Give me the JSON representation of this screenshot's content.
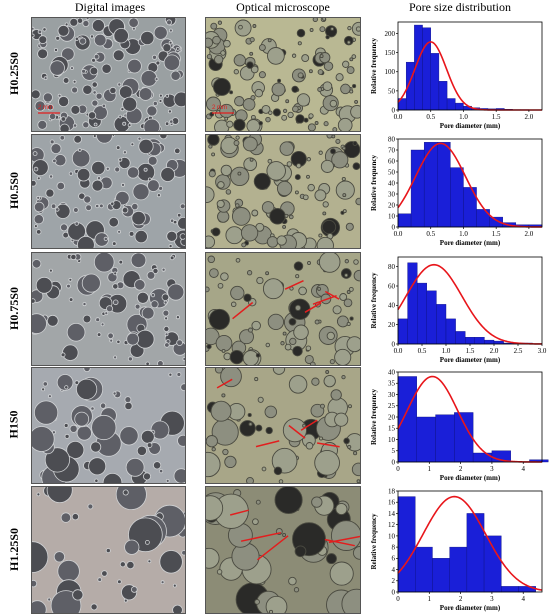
{
  "headers": {
    "digital": "Digital images",
    "optical": "Optical microscope",
    "pore": "Pore size distribution"
  },
  "scale_labels": {
    "digital": "2 mm",
    "optical": "2 mm"
  },
  "colors": {
    "bar": "#1a1fd8",
    "curve": "#e8161b",
    "axis": "#000000"
  },
  "rows": [
    {
      "label": "H0.25S0"
    },
    {
      "label": "H0.5S0"
    },
    {
      "label": "H0.75S0"
    },
    {
      "label": "H1S0"
    },
    {
      "label": "H1.25S0"
    }
  ],
  "chart_data": [
    {
      "type": "bar",
      "xlabel": "Pore diameter (mm)",
      "ylabel": "Relative frequency",
      "xlim": [
        0,
        2.2
      ],
      "ylim": [
        0,
        230
      ],
      "xticks": [
        0.0,
        0.5,
        1.0,
        1.5,
        2.0
      ],
      "xtick_labels": [
        "0.0",
        "0.5",
        "1.0",
        "1.5",
        "2.0"
      ],
      "yticks": [
        0,
        50,
        100,
        150,
        200
      ],
      "bin_width": 0.125,
      "bin_starts": [
        0.0,
        0.125,
        0.25,
        0.375,
        0.5,
        0.625,
        0.75,
        0.875,
        1.0,
        1.125,
        1.25,
        1.375,
        1.5,
        1.625,
        1.75,
        1.875,
        2.0
      ],
      "values": [
        30,
        125,
        222,
        215,
        148,
        75,
        30,
        18,
        10,
        6,
        4,
        3,
        4,
        2,
        1,
        1,
        0
      ],
      "curve": {
        "peak_x": 0.5,
        "peak_y": 178,
        "sigma": 0.24
      }
    },
    {
      "type": "bar",
      "xlabel": "Pore diameter (mm)",
      "ylabel": "Relative frequency",
      "xlim": [
        0,
        2.2
      ],
      "ylim": [
        0,
        80
      ],
      "xticks": [
        0.0,
        0.5,
        1.0,
        1.5,
        2.0
      ],
      "xtick_labels": [
        "0.0",
        "0.5",
        "1.0",
        "1.5",
        "2.0"
      ],
      "yticks": [
        0,
        10,
        20,
        30,
        40,
        50,
        60,
        70,
        80
      ],
      "bin_width": 0.2,
      "bin_starts": [
        0.0,
        0.2,
        0.4,
        0.6,
        0.8,
        1.0,
        1.2,
        1.4,
        1.6,
        1.8,
        2.0
      ],
      "values": [
        12,
        70,
        77,
        77,
        54,
        36,
        16,
        9,
        4,
        2,
        2
      ],
      "curve": {
        "peak_x": 0.65,
        "peak_y": 76,
        "sigma": 0.38
      }
    },
    {
      "type": "bar",
      "xlabel": "Pore diameter (mm)",
      "ylabel": "Relative frequency",
      "xlim": [
        0,
        3.0
      ],
      "ylim": [
        0,
        90
      ],
      "xticks": [
        0.0,
        0.5,
        1.0,
        1.5,
        2.0,
        2.5,
        3.0
      ],
      "xtick_labels": [
        "0.0",
        "0.5",
        "1.0",
        "1.5",
        "2.0",
        "2.5",
        "3.0"
      ],
      "yticks": [
        0,
        20,
        40,
        60,
        80
      ],
      "bin_width": 0.2,
      "bin_starts": [
        0.0,
        0.2,
        0.4,
        0.6,
        0.8,
        1.0,
        1.2,
        1.4,
        1.6,
        1.8,
        2.0,
        2.2,
        2.4,
        2.6,
        2.8
      ],
      "values": [
        26,
        84,
        63,
        55,
        41,
        26,
        13,
        7,
        7,
        4,
        3,
        1,
        1,
        1,
        0
      ],
      "curve": {
        "peak_x": 0.75,
        "peak_y": 82,
        "sigma": 0.58
      }
    },
    {
      "type": "bar",
      "xlabel": "Pore diameter (mm)",
      "ylabel": "Relative frequency",
      "xlim": [
        0,
        4.6
      ],
      "ylim": [
        0,
        40
      ],
      "xticks": [
        0,
        1,
        2,
        3,
        4
      ],
      "xtick_labels": [
        "0",
        "1",
        "2",
        "3",
        "4"
      ],
      "yticks": [
        0,
        5,
        10,
        15,
        20,
        25,
        30,
        35,
        40
      ],
      "bin_width": 0.6,
      "bin_starts": [
        0.0,
        0.6,
        1.2,
        1.8,
        2.4,
        3.0,
        3.6,
        4.2
      ],
      "values": [
        38,
        20,
        21,
        22,
        4,
        5,
        0,
        1
      ],
      "curve": {
        "peak_x": 1.1,
        "peak_y": 38,
        "sigma": 0.8
      }
    },
    {
      "type": "bar",
      "xlabel": "Pore diameter (mm)",
      "ylabel": "Relative frequency",
      "xlim": [
        0,
        4.6
      ],
      "ylim": [
        0,
        18
      ],
      "xticks": [
        0,
        1,
        2,
        3,
        4
      ],
      "xtick_labels": [
        "0",
        "1",
        "2",
        "3",
        "4"
      ],
      "yticks": [
        0,
        2,
        4,
        6,
        8,
        10,
        12,
        14,
        16,
        18
      ],
      "bin_width": 0.55,
      "bin_starts": [
        0.0,
        0.55,
        1.1,
        1.65,
        2.2,
        2.75,
        3.3,
        3.85
      ],
      "values": [
        17,
        8,
        6,
        8,
        14,
        10,
        1,
        1
      ],
      "curve": {
        "peak_x": 1.8,
        "peak_y": 17,
        "sigma": 1.0
      }
    }
  ]
}
